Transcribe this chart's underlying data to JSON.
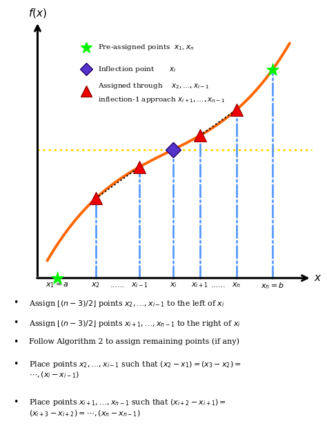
{
  "fig_width": 4.74,
  "fig_height": 6.2,
  "dpi": 100,
  "curve_color": "#FF6600",
  "curve_lw": 2.8,
  "horizontal_line_color": "#FFD700",
  "vertical_line_color": "#5599FF",
  "green_star_color": "#00EE00",
  "blue_diamond_color": "#5533CC",
  "red_triangle_color": "#EE0000",
  "x_positions": [
    0.04,
    0.2,
    0.38,
    0.52,
    0.63,
    0.78,
    0.93
  ],
  "inflection_cubic_a": 1.8,
  "inflection_cubic_b": 0.55,
  "inflection_cubic_c": 0.5,
  "inflection_cubic_d": 0.48,
  "bullet_lines": [
    "Assign $\\lfloor(n-3)/2\\rfloor$ points $x_2,\\ldots,x_{i-1}$ to the left of $x_i$",
    "Assign $\\lfloor(n-3)/2\\rfloor$ points $x_{i+1},\\ldots,x_{n-1}$ to the right of $x_i$",
    "Follow Algorithm 2 to assign remaining points (if any)",
    "Place points $x_2,\\ldots,x_{i-1}$ such that $(x_2-x_1)=(x_3-x_2)=$\n$\\cdots,(x_i-x_{i-1})$",
    "Place points $x_{i+1},\\ldots,x_{n-1}$ such that $(x_{i+2}-x_{i+1})=$\n$(x_{i+3}-x_{i+2})=\\cdots,(x_n-x_{n-1})$"
  ]
}
